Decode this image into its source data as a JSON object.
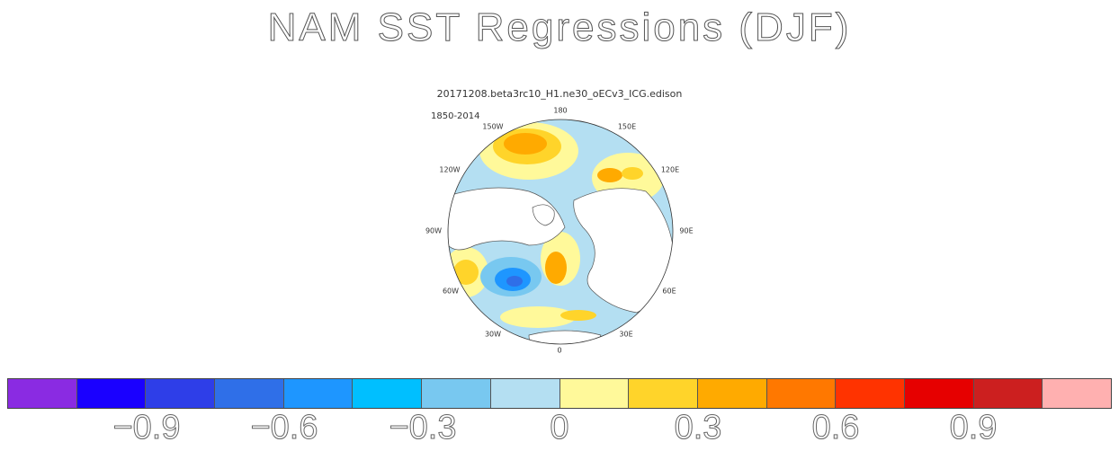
{
  "title": "NAM SST Regressions (DJF)",
  "subtitle": "20171208.beta3rc10_H1.ne30_oECv3_ICG.edison",
  "period": "1850-2014",
  "map": {
    "projection": "north-polar-stereographic",
    "longitude_labels": [
      "180",
      "150E",
      "120E",
      "90E",
      "60E",
      "30E",
      "0",
      "30W",
      "60W",
      "90W",
      "120W",
      "150W"
    ]
  },
  "colorbar": {
    "colors": [
      "#8a2be2",
      "#1a00ff",
      "#2e3ee8",
      "#2f6fe8",
      "#1e96ff",
      "#00bfff",
      "#78c8f0",
      "#b4dff2",
      "#fff99a",
      "#ffd42a",
      "#ffaa00",
      "#ff7800",
      "#ff3300",
      "#e60000",
      "#cc1f1f",
      "#ffb0b0"
    ],
    "tick_labels": [
      "−0.9",
      "−0.6",
      "−0.3",
      "0",
      "0.3",
      "0.6",
      "0.9"
    ]
  }
}
